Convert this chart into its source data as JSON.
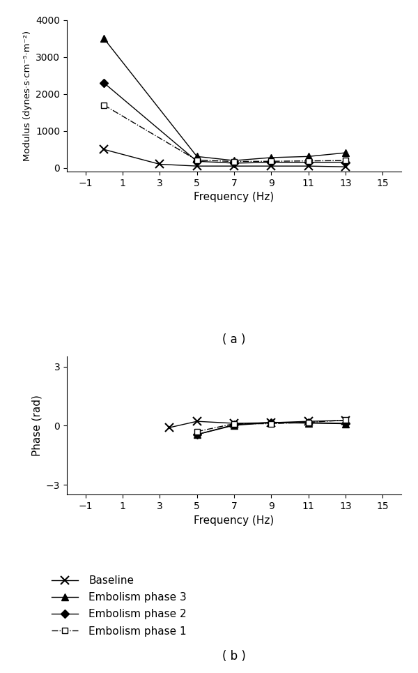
{
  "modulus": {
    "baseline": {
      "x": [
        0,
        3,
        5,
        7,
        9,
        11,
        13
      ],
      "y": [
        500,
        100,
        50,
        50,
        50,
        50,
        30
      ]
    },
    "phase3": {
      "x": [
        0,
        5,
        7,
        9,
        11,
        13
      ],
      "y": [
        3500,
        310,
        200,
        280,
        310,
        410
      ]
    },
    "phase2": {
      "x": [
        0,
        5,
        7,
        9,
        11,
        13
      ],
      "y": [
        2300,
        180,
        130,
        150,
        150,
        155
      ]
    },
    "phase1": {
      "x": [
        0,
        5,
        7,
        9,
        11,
        13
      ],
      "y": [
        1700,
        210,
        175,
        180,
        190,
        200
      ]
    }
  },
  "phase": {
    "baseline": {
      "x": [
        3.5,
        5,
        7,
        9,
        11,
        13
      ],
      "y": [
        -0.1,
        0.22,
        0.12,
        0.15,
        0.22,
        0.27
      ]
    },
    "phase3": {
      "x": [
        5,
        7,
        9,
        11,
        13
      ],
      "y": [
        -0.45,
        0.02,
        0.15,
        0.13,
        0.1
      ]
    },
    "phase2": {
      "x": [
        5,
        7,
        9,
        11,
        13
      ],
      "y": [
        -0.45,
        0.05,
        0.17,
        0.15,
        0.12
      ]
    },
    "phase1": {
      "x": [
        5,
        7,
        9,
        11,
        13
      ],
      "y": [
        -0.3,
        0.1,
        0.1,
        0.17,
        0.28
      ]
    }
  },
  "xlim": [
    -2,
    16
  ],
  "xticks": [
    -1,
    1,
    3,
    5,
    7,
    9,
    11,
    13,
    15
  ],
  "modulus_ylim": [
    -100,
    4000
  ],
  "modulus_yticks": [
    0,
    1000,
    2000,
    3000,
    4000
  ],
  "phase_ylim": [
    -3.5,
    3.5
  ],
  "phase_yticks": [
    -3,
    0,
    3
  ],
  "xlabel": "Frequency (Hz)",
  "ylabel_modulus": "Modulus (dynes·s·cm⁻⁵·m⁻²)",
  "ylabel_phase": "Phase (rad)",
  "label_a": "( a )",
  "label_b": "( b )",
  "background_color": "#ffffff"
}
